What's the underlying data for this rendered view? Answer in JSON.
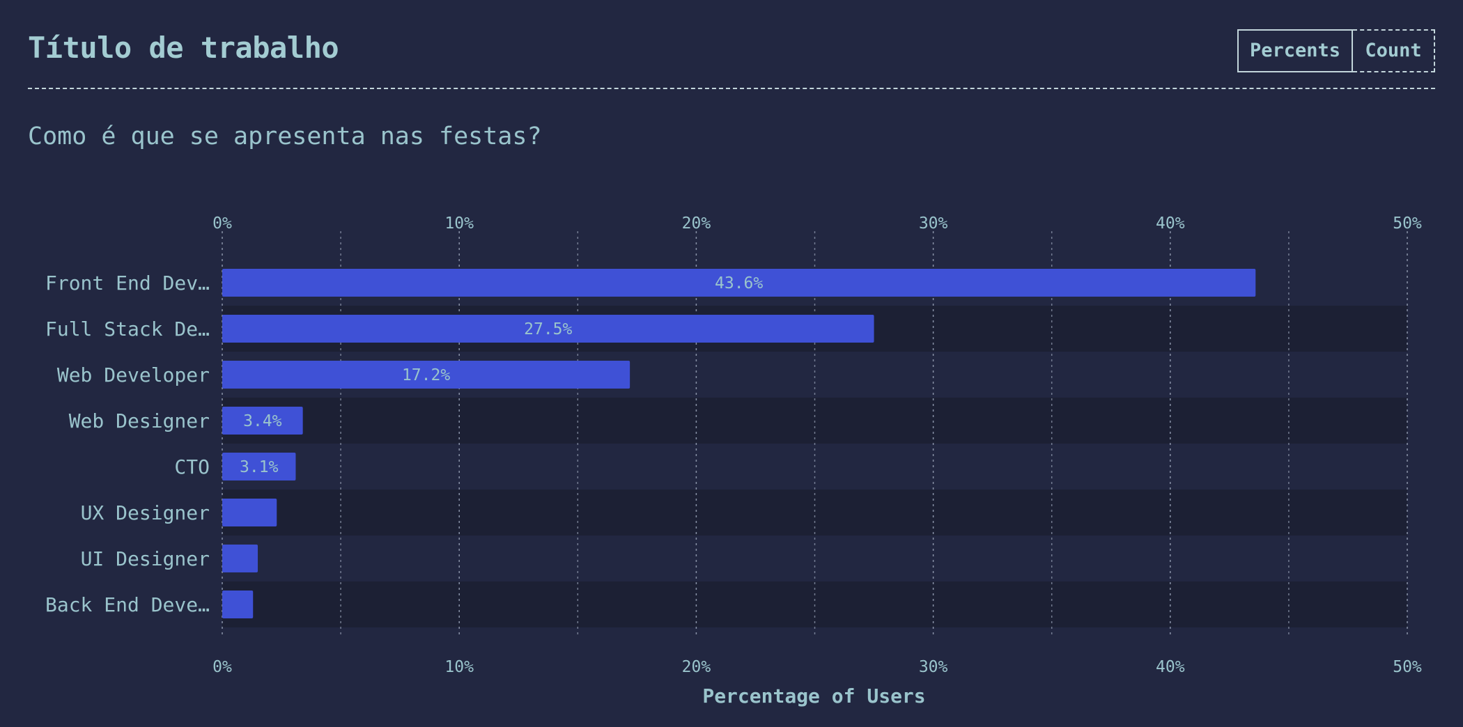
{
  "header": {
    "title": "Título de trabalho"
  },
  "toggle": {
    "percents_label": "Percents",
    "count_label": "Count",
    "selected": "Percents"
  },
  "question": "Como é que se apresenta nas festas?",
  "colors": {
    "background": "#222741",
    "row_alt": "#1c2034",
    "bar": "#3f51d6",
    "text": "#9ac4cc",
    "grid": "#8a93a8"
  },
  "chart_data": {
    "type": "bar",
    "orientation": "horizontal",
    "categories": [
      "Front End Dev…",
      "Full Stack De…",
      "Web Developer",
      "Web Designer",
      "CTO",
      "UX Designer",
      "UI Designer",
      "Back End Deve…"
    ],
    "values": [
      43.6,
      27.5,
      17.2,
      3.4,
      3.1,
      2.3,
      1.5,
      1.3
    ],
    "data_labels": [
      "43.6%",
      "27.5%",
      "17.2%",
      "3.4%",
      "3.1%",
      "",
      "",
      ""
    ],
    "xlim": [
      0,
      50
    ],
    "ticks": [
      "0%",
      "10%",
      "20%",
      "30%",
      "40%",
      "50%"
    ],
    "tick_values": [
      0,
      10,
      20,
      30,
      40,
      50
    ],
    "minor_grid_values": [
      5,
      15,
      25,
      35,
      45
    ],
    "xlabel": "Percentage of Users",
    "grid": true,
    "axis_ticks_position": "top-and-bottom"
  }
}
